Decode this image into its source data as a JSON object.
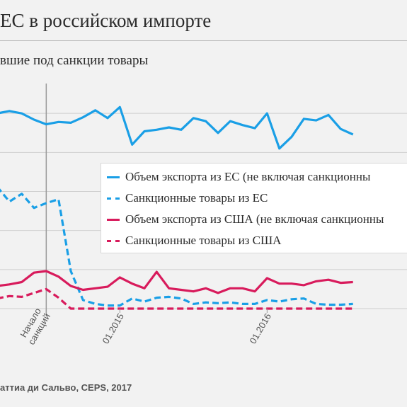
{
  "header": {
    "title": "ЕС в российском импорте",
    "subtitle": "вшие под санкции товары"
  },
  "footer": {
    "source": "аттиа ди Сальво, CEPS, 2017"
  },
  "colors": {
    "eu": "#1a9fe6",
    "us": "#d81b5c",
    "grid": "#cfcfcf",
    "marker": "#9a9a9a"
  },
  "chart_data": {
    "type": "line",
    "x_range": [
      0,
      36
    ],
    "y_range": [
      0,
      300
    ],
    "grid": true,
    "legend_position": "right",
    "x_ticks": [
      {
        "x": 4,
        "label": "Начало\nсанкций"
      },
      {
        "x": 10,
        "label": "01.2015"
      },
      {
        "x": 22,
        "label": "01.2016"
      }
    ],
    "annotations": [
      {
        "type": "vline",
        "x": 4,
        "label": "Начало санкций"
      }
    ],
    "series": [
      {
        "name": "Объем экспорта из ЕС (не включая санкционны",
        "color_key": "eu",
        "dash": false,
        "x": [
          0,
          1,
          2,
          3,
          4,
          5,
          6,
          7,
          8,
          9,
          10,
          11,
          12,
          13,
          14,
          15,
          16,
          17,
          18,
          19,
          20,
          21,
          22,
          23,
          24,
          25,
          26,
          27,
          28,
          29
        ],
        "values": [
          250,
          253,
          250,
          242,
          236,
          239,
          238,
          245,
          254,
          244,
          258,
          210,
          227,
          229,
          232,
          229,
          244,
          240,
          225,
          240,
          235,
          231,
          250,
          205,
          220,
          243,
          241,
          248,
          230,
          223
        ]
      },
      {
        "name": "Санкционные товары из ЕС",
        "color_key": "eu",
        "dash": true,
        "x": [
          0,
          1,
          2,
          3,
          4,
          5,
          6,
          7,
          8,
          9,
          10,
          11,
          12,
          13,
          14,
          15,
          16,
          17,
          18,
          19,
          20,
          21,
          22,
          23,
          24,
          25,
          26,
          27,
          28,
          29
        ],
        "values": [
          156,
          137,
          147,
          129,
          135,
          140,
          48,
          11,
          6,
          4,
          4,
          13,
          9,
          14,
          15,
          13,
          6,
          8,
          7,
          8,
          6,
          6,
          11,
          9,
          12,
          13,
          6,
          5,
          5,
          6
        ]
      },
      {
        "name": "Объем экспорта из США (не включая санкционны",
        "color_key": "us",
        "dash": false,
        "x": [
          0,
          1,
          2,
          3,
          4,
          5,
          6,
          7,
          8,
          9,
          10,
          11,
          12,
          13,
          14,
          15,
          16,
          17,
          18,
          19,
          20,
          21,
          22,
          23,
          24,
          25,
          26,
          27,
          28,
          29
        ],
        "values": [
          29,
          31,
          34,
          46,
          48,
          41,
          29,
          24,
          26,
          28,
          40,
          32,
          26,
          47,
          26,
          24,
          22,
          26,
          20,
          26,
          26,
          22,
          39,
          32,
          32,
          30,
          35,
          37,
          33,
          34
        ]
      },
      {
        "name": "Санкционные товары из США",
        "color_key": "us",
        "dash": true,
        "x": [
          0,
          1,
          2,
          3,
          4,
          5,
          6,
          7,
          8,
          9,
          10,
          11,
          12,
          13,
          14,
          15,
          16,
          17,
          18,
          19,
          20,
          21,
          22,
          23,
          24,
          25,
          26,
          27,
          28,
          29
        ],
        "values": [
          13,
          16,
          15,
          20,
          25,
          14,
          0,
          0,
          0,
          0,
          0,
          0,
          0,
          0,
          0,
          0,
          0,
          0,
          0,
          0,
          0,
          0,
          0,
          0,
          0,
          0,
          0,
          0,
          0,
          0
        ]
      }
    ]
  }
}
